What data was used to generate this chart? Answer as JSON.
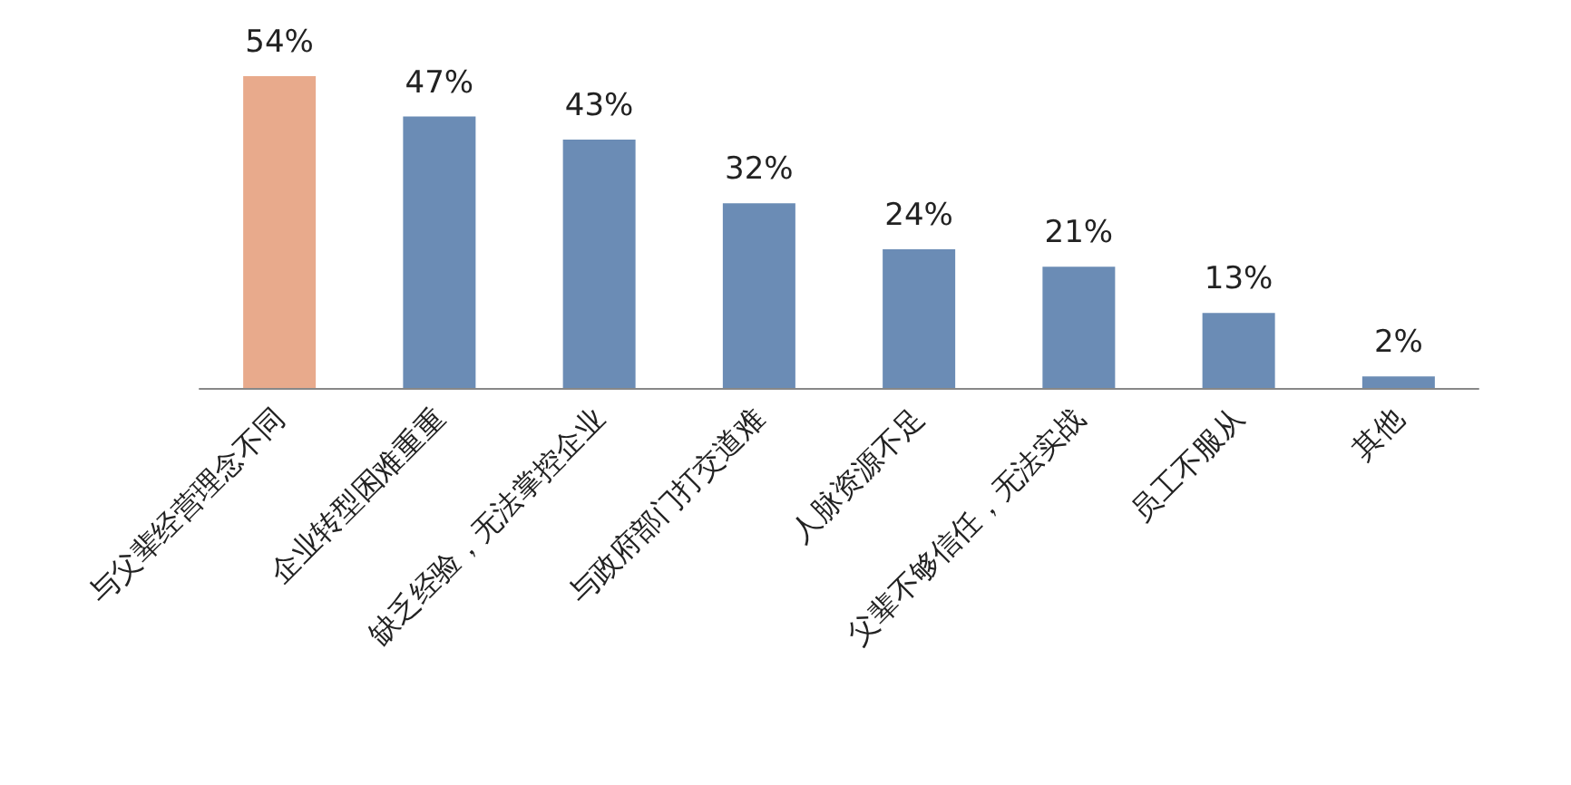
{
  "chart_data": {
    "type": "bar",
    "categories": [
      "与父辈经营理念不同",
      "企业转型困难重重",
      "缺乏经验，无法掌控企业",
      "与政府部门打交道难",
      "人脉资源不足",
      "父辈不够信任，无法实战",
      "员工不服从",
      "其他"
    ],
    "values": [
      54,
      47,
      43,
      32,
      24,
      21,
      13,
      2
    ],
    "value_labels": [
      "54%",
      "47%",
      "43%",
      "32%",
      "24%",
      "21%",
      "13%",
      "2%"
    ],
    "colors": [
      "#e8aa8c",
      "#6b8cb5",
      "#6b8cb5",
      "#6b8cb5",
      "#6b8cb5",
      "#6b8cb5",
      "#6b8cb5",
      "#6b8cb5"
    ]
  }
}
